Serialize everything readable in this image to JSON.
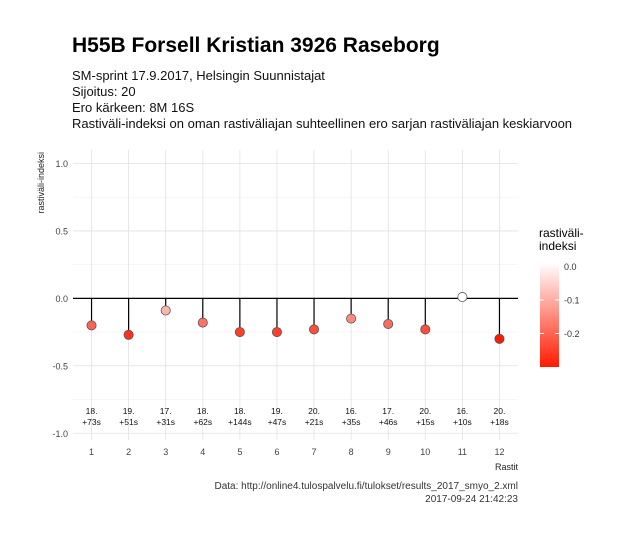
{
  "header": {
    "title": "H55B Forsell Kristian 3926 Raseborg",
    "subtitle_lines": [
      "SM-sprint 17.9.2017, Helsingin Suunnistajat",
      "Sijoitus: 20",
      "Ero kärkeen: 8M 16S",
      "Rastiväli-indeksi on oman rastiväliajan suhteellinen ero sarjan rastiväliajan keskiarvoon"
    ]
  },
  "caption": {
    "source": "Data: http://online4.tulospalvelu.fi/tulokset/results_2017_smyo_2.xml",
    "timestamp": "2017-09-24 21:42:23"
  },
  "chart_data": {
    "type": "scatter",
    "xlabel": "Rastit",
    "ylabel": "rastiväli-indeksi",
    "xlim": [
      0.5,
      12.5
    ],
    "ylim": [
      -1.05,
      1.1
    ],
    "x_ticks": [
      "1",
      "2",
      "3",
      "4",
      "5",
      "6",
      "7",
      "8",
      "9",
      "10",
      "11",
      "12"
    ],
    "y_ticks": [
      "1.0",
      "0.5",
      "0.0",
      "-0.5",
      "-1.0"
    ],
    "y_tick_values": [
      1.0,
      0.5,
      0.0,
      -0.5,
      -1.0
    ],
    "grid": true,
    "x": [
      1,
      2,
      3,
      4,
      5,
      6,
      7,
      8,
      9,
      10,
      11,
      12
    ],
    "values": [
      -0.2,
      -0.27,
      -0.09,
      -0.18,
      -0.25,
      -0.25,
      -0.23,
      -0.15,
      -0.19,
      -0.23,
      0.01,
      -0.3
    ],
    "annotations": [
      {
        "rank": "18.",
        "diff": "+73s"
      },
      {
        "rank": "19.",
        "diff": "+51s"
      },
      {
        "rank": "17.",
        "diff": "+31s"
      },
      {
        "rank": "18.",
        "diff": "+62s"
      },
      {
        "rank": "18.",
        "diff": "+144s"
      },
      {
        "rank": "19.",
        "diff": "+47s"
      },
      {
        "rank": "20.",
        "diff": "+21s"
      },
      {
        "rank": "16.",
        "diff": "+35s"
      },
      {
        "rank": "17.",
        "diff": "+46s"
      },
      {
        "rank": "20.",
        "diff": "+15s"
      },
      {
        "rank": "16.",
        "diff": "+10s"
      },
      {
        "rank": "20.",
        "diff": "+18s"
      }
    ],
    "legend": {
      "title": "rastiväli-\nindeksi",
      "placement": "right",
      "ticks": [
        "0.0",
        "-0.1",
        "-0.2"
      ],
      "tick_values": [
        0.0,
        -0.1,
        -0.2
      ],
      "range": [
        -0.3,
        0.01
      ],
      "color_high": "#ffffff",
      "color_low": "#ff1a00"
    }
  }
}
